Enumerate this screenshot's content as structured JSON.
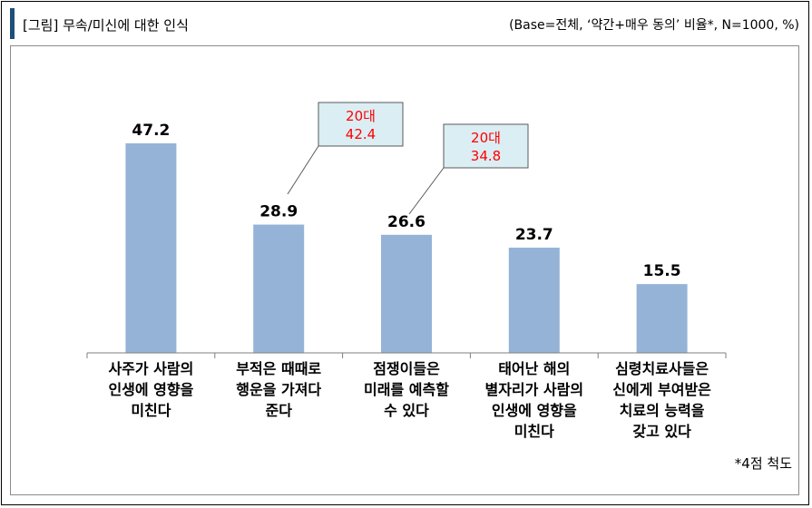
{
  "header": {
    "title": "[그림] 무속/미신에 대한 인식",
    "subtitle": "(Base=전체, ‘약간+매우 동의’ 비율*, N=1000, %)"
  },
  "footnote": "*4점  척도",
  "colors": {
    "bar": "#95b3d7",
    "callout_fill": "#dbeef4",
    "callout_text": "#ff0000",
    "axis": "#7f7f7f",
    "accent": "#1f4e79"
  },
  "chart_data": {
    "type": "bar",
    "categories": [
      [
        "사주가 사람의",
        "인생에 영향을",
        "미친다"
      ],
      [
        "부적은 때때로",
        "행운을 가져다",
        "준다"
      ],
      [
        "점쟁이들은",
        "미래를 예측할",
        "수 있다"
      ],
      [
        "태어난 해의",
        "별자리가 사람의",
        "인생에 영향을",
        "미친다"
      ],
      [
        "심령치료사들은",
        "신에게 부여받은",
        "치료의 능력을",
        "갖고 있다"
      ]
    ],
    "values": [
      47.2,
      28.9,
      26.6,
      23.7,
      15.5
    ],
    "value_labels": [
      "47.2",
      "28.9",
      "26.6",
      "23.7",
      "15.5"
    ],
    "ylim": [
      0,
      60
    ],
    "grid": false,
    "annotations": [
      {
        "category_index": 1,
        "line1": "20대",
        "line2": "42.4"
      },
      {
        "category_index": 2,
        "line1": "20대",
        "line2": "34.8"
      }
    ]
  }
}
